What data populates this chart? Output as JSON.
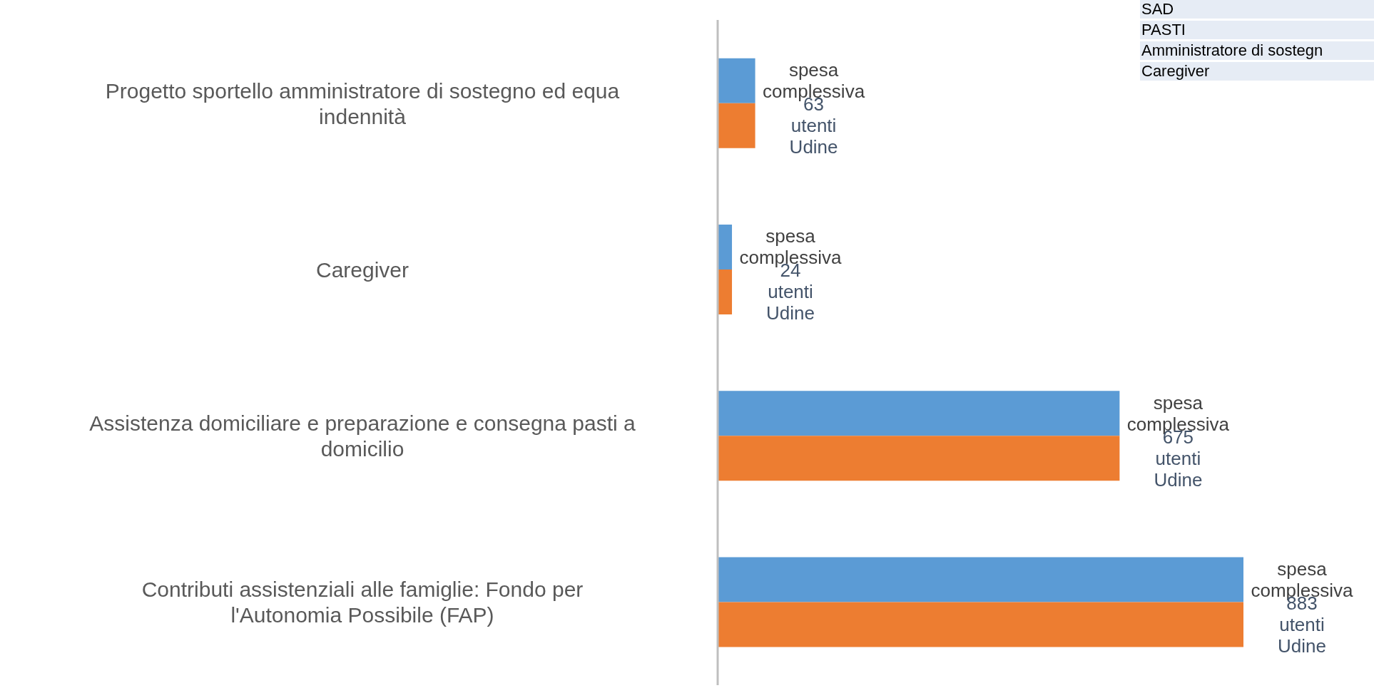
{
  "chart_data": {
    "type": "bar",
    "orientation": "horizontal",
    "categories": [
      "Progetto sportello amministratore di sostegno ed equa indennità",
      "Caregiver",
      "Assistenza domiciliare e preparazione e consegna pasti a domicilio",
      "Contributi assistenziali alle famiglie: Fondo per l'Autonomia Possibile (FAP)"
    ],
    "series": [
      {
        "name": "spesa complessiva",
        "color": "#5b9bd5",
        "values": [
          63,
          24,
          675,
          883
        ]
      },
      {
        "name": "utenti Udine",
        "color": "#ed7d31",
        "values": [
          63,
          24,
          675,
          883
        ],
        "value_labels": [
          "63",
          "24",
          "675",
          "883"
        ]
      }
    ],
    "annotations": [
      "SAD",
      "PASTI",
      "Amministratore di sostegn",
      "Caregiver"
    ]
  }
}
